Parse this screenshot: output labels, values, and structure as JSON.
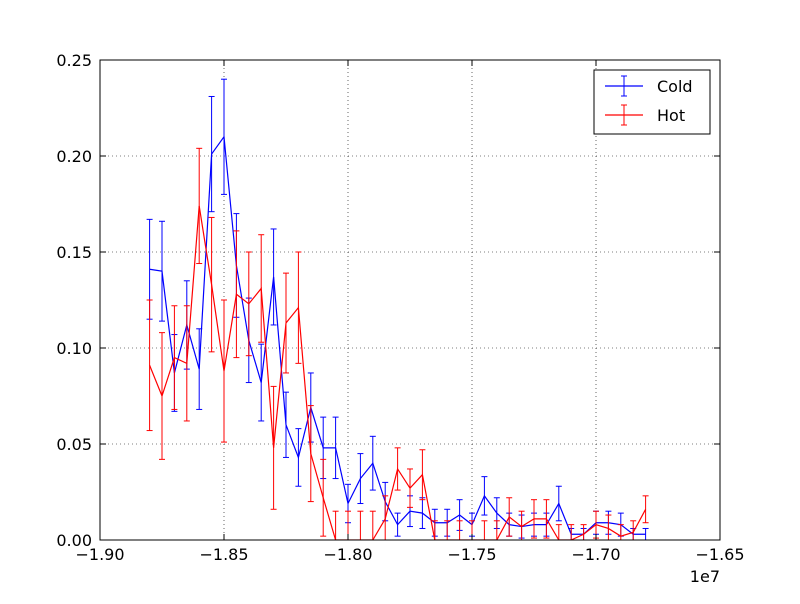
{
  "chart_data": {
    "type": "line",
    "title": "",
    "xlabel": "",
    "ylabel": "",
    "x_offset_label": "1e7",
    "xlim": [
      -1.9,
      -1.65
    ],
    "ylim": [
      0.0,
      0.25
    ],
    "x_ticks": [
      -1.9,
      -1.85,
      -1.8,
      -1.75,
      -1.7,
      -1.65
    ],
    "x_tick_labels": [
      "−1.90",
      "−1.85",
      "−1.80",
      "−1.75",
      "−1.70",
      "−1.65"
    ],
    "y_ticks": [
      0.0,
      0.05,
      0.1,
      0.15,
      0.2,
      0.25
    ],
    "y_tick_labels": [
      "0.00",
      "0.05",
      "0.10",
      "0.15",
      "0.20",
      "0.25"
    ],
    "grid": true,
    "legend_position": "top-right",
    "series": [
      {
        "name": "Cold",
        "color": "#0000ff",
        "points": [
          {
            "x": -1.88,
            "y": 0.141,
            "err": 0.026
          },
          {
            "x": -1.875,
            "y": 0.14,
            "err": 0.026
          },
          {
            "x": -1.87,
            "y": 0.087,
            "err": 0.02
          },
          {
            "x": -1.865,
            "y": 0.112,
            "err": 0.023
          },
          {
            "x": -1.86,
            "y": 0.089,
            "err": 0.021
          },
          {
            "x": -1.855,
            "y": 0.201,
            "err": 0.03
          },
          {
            "x": -1.85,
            "y": 0.21,
            "err": 0.03
          },
          {
            "x": -1.845,
            "y": 0.143,
            "err": 0.027
          },
          {
            "x": -1.84,
            "y": 0.104,
            "err": 0.022
          },
          {
            "x": -1.835,
            "y": 0.082,
            "err": 0.02
          },
          {
            "x": -1.83,
            "y": 0.137,
            "err": 0.025
          },
          {
            "x": -1.825,
            "y": 0.06,
            "err": 0.017
          },
          {
            "x": -1.82,
            "y": 0.043,
            "err": 0.015
          },
          {
            "x": -1.815,
            "y": 0.069,
            "err": 0.018
          },
          {
            "x": -1.81,
            "y": 0.048,
            "err": 0.016
          },
          {
            "x": -1.805,
            "y": 0.048,
            "err": 0.016
          },
          {
            "x": -1.8,
            "y": 0.019,
            "err": 0.01
          },
          {
            "x": -1.795,
            "y": 0.032,
            "err": 0.013
          },
          {
            "x": -1.79,
            "y": 0.04,
            "err": 0.014
          },
          {
            "x": -1.785,
            "y": 0.02,
            "err": 0.01
          },
          {
            "x": -1.78,
            "y": 0.008,
            "err": 0.006
          },
          {
            "x": -1.775,
            "y": 0.015,
            "err": 0.008
          },
          {
            "x": -1.77,
            "y": 0.014,
            "err": 0.008
          },
          {
            "x": -1.765,
            "y": 0.009,
            "err": 0.007
          },
          {
            "x": -1.76,
            "y": 0.009,
            "err": 0.007
          },
          {
            "x": -1.755,
            "y": 0.013,
            "err": 0.008
          },
          {
            "x": -1.75,
            "y": 0.008,
            "err": 0.006
          },
          {
            "x": -1.745,
            "y": 0.023,
            "err": 0.01
          },
          {
            "x": -1.74,
            "y": 0.014,
            "err": 0.008
          },
          {
            "x": -1.735,
            "y": 0.008,
            "err": 0.006
          },
          {
            "x": -1.73,
            "y": 0.007,
            "err": 0.006
          },
          {
            "x": -1.725,
            "y": 0.008,
            "err": 0.006
          },
          {
            "x": -1.72,
            "y": 0.008,
            "err": 0.006
          },
          {
            "x": -1.715,
            "y": 0.019,
            "err": 0.009
          },
          {
            "x": -1.71,
            "y": 0.003,
            "err": 0.003
          },
          {
            "x": -1.705,
            "y": 0.003,
            "err": 0.003
          },
          {
            "x": -1.7,
            "y": 0.009,
            "err": 0.006
          },
          {
            "x": -1.695,
            "y": 0.009,
            "err": 0.006
          },
          {
            "x": -1.69,
            "y": 0.008,
            "err": 0.006
          },
          {
            "x": -1.685,
            "y": 0.003,
            "err": 0.003
          },
          {
            "x": -1.68,
            "y": 0.003,
            "err": 0.003
          }
        ]
      },
      {
        "name": "Hot",
        "color": "#ff0000",
        "points": [
          {
            "x": -1.88,
            "y": 0.091,
            "err": 0.034
          },
          {
            "x": -1.875,
            "y": 0.075,
            "err": 0.033
          },
          {
            "x": -1.87,
            "y": 0.095,
            "err": 0.027
          },
          {
            "x": -1.865,
            "y": 0.092,
            "err": 0.03
          },
          {
            "x": -1.86,
            "y": 0.174,
            "err": 0.03
          },
          {
            "x": -1.855,
            "y": 0.133,
            "err": 0.035
          },
          {
            "x": -1.85,
            "y": 0.088,
            "err": 0.037
          },
          {
            "x": -1.845,
            "y": 0.128,
            "err": 0.033
          },
          {
            "x": -1.84,
            "y": 0.123,
            "err": 0.027
          },
          {
            "x": -1.835,
            "y": 0.131,
            "err": 0.028
          },
          {
            "x": -1.83,
            "y": 0.048,
            "err": 0.032
          },
          {
            "x": -1.825,
            "y": 0.113,
            "err": 0.026
          },
          {
            "x": -1.82,
            "y": 0.121,
            "err": 0.029
          },
          {
            "x": -1.815,
            "y": 0.045,
            "err": 0.025
          },
          {
            "x": -1.81,
            "y": 0.022,
            "err": 0.02
          },
          {
            "x": -1.805,
            "y": 0.0,
            "err": 0.015
          },
          {
            "x": -1.8,
            "y": 0.0,
            "err": 0.015
          },
          {
            "x": -1.795,
            "y": 0.0,
            "err": 0.015
          },
          {
            "x": -1.79,
            "y": 0.0,
            "err": 0.015
          },
          {
            "x": -1.785,
            "y": 0.011,
            "err": 0.012
          },
          {
            "x": -1.78,
            "y": 0.037,
            "err": 0.011
          },
          {
            "x": -1.775,
            "y": 0.027,
            "err": 0.01
          },
          {
            "x": -1.77,
            "y": 0.034,
            "err": 0.013
          },
          {
            "x": -1.765,
            "y": 0.0,
            "err": 0.01
          },
          {
            "x": -1.76,
            "y": 0.0,
            "err": 0.01
          },
          {
            "x": -1.755,
            "y": 0.0,
            "err": 0.01
          },
          {
            "x": -1.75,
            "y": 0.0,
            "err": 0.01
          },
          {
            "x": -1.745,
            "y": 0.0,
            "err": 0.01
          },
          {
            "x": -1.74,
            "y": 0.0,
            "err": 0.01
          },
          {
            "x": -1.735,
            "y": 0.012,
            "err": 0.01
          },
          {
            "x": -1.73,
            "y": 0.007,
            "err": 0.008
          },
          {
            "x": -1.725,
            "y": 0.011,
            "err": 0.01
          },
          {
            "x": -1.72,
            "y": 0.011,
            "err": 0.01
          },
          {
            "x": -1.715,
            "y": 0.0,
            "err": 0.008
          },
          {
            "x": -1.71,
            "y": 0.0,
            "err": 0.008
          },
          {
            "x": -1.705,
            "y": 0.003,
            "err": 0.005
          },
          {
            "x": -1.7,
            "y": 0.008,
            "err": 0.007
          },
          {
            "x": -1.695,
            "y": 0.006,
            "err": 0.007
          },
          {
            "x": -1.69,
            "y": 0.002,
            "err": 0.006
          },
          {
            "x": -1.685,
            "y": 0.004,
            "err": 0.006
          },
          {
            "x": -1.68,
            "y": 0.016,
            "err": 0.007
          }
        ]
      }
    ]
  }
}
